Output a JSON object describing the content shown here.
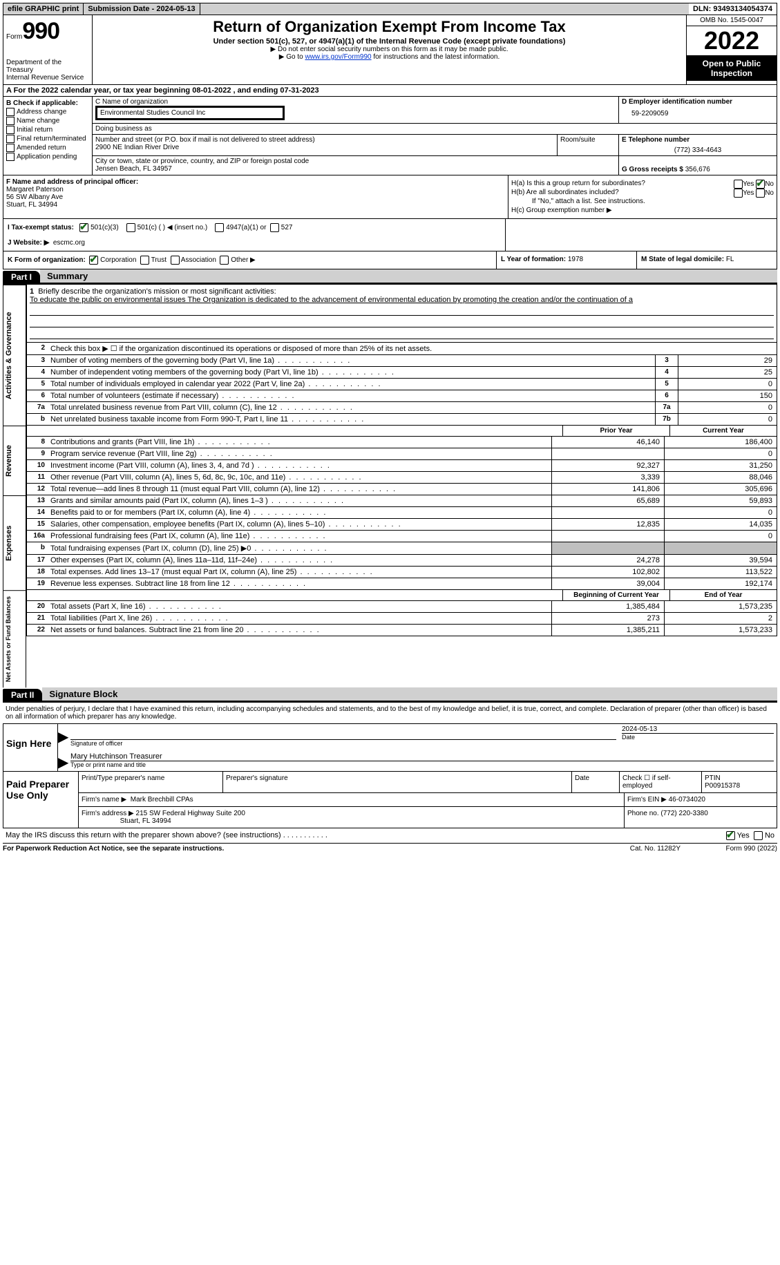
{
  "topbar": {
    "efile": "efile GRAPHIC print",
    "sub_label": "Submission Date - ",
    "sub_date": "2024-05-13",
    "dln_label": "DLN: ",
    "dln": "93493134054374"
  },
  "header": {
    "form_word": "Form",
    "form_num": "990",
    "dept": "Department of the Treasury",
    "irs": "Internal Revenue Service",
    "title": "Return of Organization Exempt From Income Tax",
    "sub1": "Under section 501(c), 527, or 4947(a)(1) of the Internal Revenue Code (except private foundations)",
    "sub2": "Do not enter social security numbers on this form as it may be made public.",
    "sub3_pre": "Go to ",
    "sub3_link": "www.irs.gov/Form990",
    "sub3_post": " for instructions and the latest information.",
    "omb": "OMB No. 1545-0047",
    "year": "2022",
    "open": "Open to Public Inspection"
  },
  "sectionA": {
    "text_pre": "A For the 2022 calendar year, or tax year beginning ",
    "begin": "08-01-2022",
    "mid": " , and ending ",
    "end": "07-31-2023"
  },
  "colB": {
    "hdr": "B Check if applicable:",
    "opts": [
      "Address change",
      "Name change",
      "Initial return",
      "Final return/terminated",
      "Amended return",
      "Application pending"
    ]
  },
  "colC": {
    "name_lbl": "C Name of organization",
    "name": "Environmental Studies Council Inc",
    "dba_lbl": "Doing business as",
    "dba": "",
    "addr_lbl": "Number and street (or P.O. box if mail is not delivered to street address)",
    "addr": "2900 NE Indian River Drive",
    "room_lbl": "Room/suite",
    "city_lbl": "City or town, state or province, country, and ZIP or foreign postal code",
    "city": "Jensen Beach, FL  34957"
  },
  "colD": {
    "lbl": "D Employer identification number",
    "val": "59-2209059"
  },
  "colE": {
    "lbl": "E Telephone number",
    "val": "(772) 334-4643"
  },
  "colG": {
    "lbl": "G Gross receipts $",
    "val": "356,676"
  },
  "colF": {
    "lbl": "F Name and address of principal officer:",
    "name": "Margaret Paterson",
    "addr": "56 SW Albany Ave",
    "city": "Stuart, FL  34994"
  },
  "colH": {
    "a": "H(a)  Is this a group return for subordinates?",
    "b": "H(b)  Are all subordinates included?",
    "b_note": "If \"No,\" attach a list. See instructions.",
    "c": "H(c)  Group exemption number ▶",
    "yes": "Yes",
    "no": "No"
  },
  "rowI": {
    "lbl": "I  Tax-exempt status:",
    "o1": "501(c)(3)",
    "o2": "501(c) (  ) ◀ (insert no.)",
    "o3": "4947(a)(1) or",
    "o4": "527"
  },
  "rowJ": {
    "lbl": "J  Website: ▶",
    "val": "escmc.org"
  },
  "rowK": {
    "lbl": "K Form of organization:",
    "o1": "Corporation",
    "o2": "Trust",
    "o3": "Association",
    "o4": "Other ▶"
  },
  "rowL": {
    "lbl": "L Year of formation:",
    "val": "1978"
  },
  "rowM": {
    "lbl": "M State of legal domicile:",
    "val": "FL"
  },
  "part1": {
    "num": "Part I",
    "title": "Summary"
  },
  "mission": {
    "line1_lbl": "1",
    "line1_q": "Briefly describe the organization's mission or most significant activities:",
    "line1_txt": "To educate the public on environmental issues The Organization is dedicated to the advancement of environmental education by promoting the creation and/or the continuation of a"
  },
  "gov": {
    "tab": "Activities & Governance",
    "l2": "Check this box ▶ ☐ if the organization discontinued its operations or disposed of more than 25% of its net assets.",
    "rows": [
      {
        "n": "3",
        "d": "Number of voting members of the governing body (Part VI, line 1a)",
        "box": "3",
        "v": "29"
      },
      {
        "n": "4",
        "d": "Number of independent voting members of the governing body (Part VI, line 1b)",
        "box": "4",
        "v": "25"
      },
      {
        "n": "5",
        "d": "Total number of individuals employed in calendar year 2022 (Part V, line 2a)",
        "box": "5",
        "v": "0"
      },
      {
        "n": "6",
        "d": "Total number of volunteers (estimate if necessary)",
        "box": "6",
        "v": "150"
      },
      {
        "n": "7a",
        "d": "Total unrelated business revenue from Part VIII, column (C), line 12",
        "box": "7a",
        "v": "0"
      },
      {
        "n": "b",
        "d": "Net unrelated business taxable income from Form 990-T, Part I, line 11",
        "box": "7b",
        "v": "0"
      }
    ]
  },
  "rev": {
    "tab": "Revenue",
    "hdr_prior": "Prior Year",
    "hdr_cur": "Current Year",
    "rows": [
      {
        "n": "8",
        "d": "Contributions and grants (Part VIII, line 1h)",
        "p": "46,140",
        "c": "186,400"
      },
      {
        "n": "9",
        "d": "Program service revenue (Part VIII, line 2g)",
        "p": "",
        "c": "0"
      },
      {
        "n": "10",
        "d": "Investment income (Part VIII, column (A), lines 3, 4, and 7d )",
        "p": "92,327",
        "c": "31,250"
      },
      {
        "n": "11",
        "d": "Other revenue (Part VIII, column (A), lines 5, 6d, 8c, 9c, 10c, and 11e)",
        "p": "3,339",
        "c": "88,046"
      },
      {
        "n": "12",
        "d": "Total revenue—add lines 8 through 11 (must equal Part VIII, column (A), line 12)",
        "p": "141,806",
        "c": "305,696"
      }
    ]
  },
  "exp": {
    "tab": "Expenses",
    "rows": [
      {
        "n": "13",
        "d": "Grants and similar amounts paid (Part IX, column (A), lines 1–3 )",
        "p": "65,689",
        "c": "59,893"
      },
      {
        "n": "14",
        "d": "Benefits paid to or for members (Part IX, column (A), line 4)",
        "p": "",
        "c": "0"
      },
      {
        "n": "15",
        "d": "Salaries, other compensation, employee benefits (Part IX, column (A), lines 5–10)",
        "p": "12,835",
        "c": "14,035"
      },
      {
        "n": "16a",
        "d": "Professional fundraising fees (Part IX, column (A), line 11e)",
        "p": "",
        "c": "0"
      },
      {
        "n": "b",
        "d": "Total fundraising expenses (Part IX, column (D), line 25) ▶0",
        "p": "grey",
        "c": "grey"
      },
      {
        "n": "17",
        "d": "Other expenses (Part IX, column (A), lines 11a–11d, 11f–24e)",
        "p": "24,278",
        "c": "39,594"
      },
      {
        "n": "18",
        "d": "Total expenses. Add lines 13–17 (must equal Part IX, column (A), line 25)",
        "p": "102,802",
        "c": "113,522"
      },
      {
        "n": "19",
        "d": "Revenue less expenses. Subtract line 18 from line 12",
        "p": "39,004",
        "c": "192,174"
      }
    ]
  },
  "net": {
    "tab": "Net Assets or Fund Balances",
    "hdr_beg": "Beginning of Current Year",
    "hdr_end": "End of Year",
    "rows": [
      {
        "n": "20",
        "d": "Total assets (Part X, line 16)",
        "p": "1,385,484",
        "c": "1,573,235"
      },
      {
        "n": "21",
        "d": "Total liabilities (Part X, line 26)",
        "p": "273",
        "c": "2"
      },
      {
        "n": "22",
        "d": "Net assets or fund balances. Subtract line 21 from line 20",
        "p": "1,385,211",
        "c": "1,573,233"
      }
    ]
  },
  "part2": {
    "num": "Part II",
    "title": "Signature Block"
  },
  "sig": {
    "decl": "Under penalties of perjury, I declare that I have examined this return, including accompanying schedules and statements, and to the best of my knowledge and belief, it is true, correct, and complete. Declaration of preparer (other than officer) is based on all information of which preparer has any knowledge.",
    "here": "Sign Here",
    "sig_lbl": "Signature of officer",
    "date_lbl": "Date",
    "date": "2024-05-13",
    "name": "Mary Hutchinson  Treasurer",
    "name_lbl": "Type or print name and title"
  },
  "prep": {
    "here": "Paid Preparer Use Only",
    "hdr_name": "Print/Type preparer's name",
    "hdr_sig": "Preparer's signature",
    "hdr_date": "Date",
    "hdr_self": "Check ☐ if self-employed",
    "ptin_lbl": "PTIN",
    "ptin": "P00915378",
    "firm_lbl": "Firm's name  ▶",
    "firm": "Mark Brechbill CPAs",
    "ein_lbl": "Firm's EIN ▶",
    "ein": "46-0734020",
    "addr_lbl": "Firm's address ▶",
    "addr1": "215 SW Federal Highway Suite 200",
    "addr2": "Stuart, FL  34994",
    "phone_lbl": "Phone no.",
    "phone": "(772) 220-3380"
  },
  "footer": {
    "q": "May the IRS discuss this return with the preparer shown above? (see instructions)",
    "yes": "Yes",
    "no": "No",
    "notice": "For Paperwork Reduction Act Notice, see the separate instructions.",
    "cat": "Cat. No. 11282Y",
    "form": "Form 990 (2022)"
  }
}
